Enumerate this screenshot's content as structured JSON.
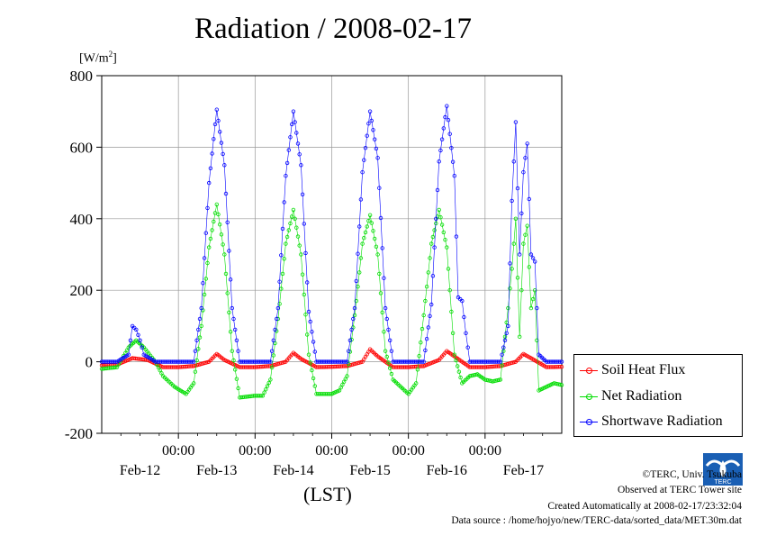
{
  "chart_data": {
    "type": "line",
    "title": "Radiation / 2008-02-17",
    "ylabel_unit": "[W/m",
    "ylabel_unit_sup": "2",
    "ylabel_unit_close": "]",
    "xlabel": "(LST)",
    "ylim": [
      -200,
      800
    ],
    "yticks": [
      "800",
      "600",
      "400",
      "200",
      "0",
      "-200"
    ],
    "ytick_values": [
      800,
      600,
      400,
      200,
      0,
      -200
    ],
    "xticks_time": [
      "00:00",
      "00:00",
      "00:00",
      "00:00",
      "00:00"
    ],
    "xticks_date": [
      "Feb-12",
      "Feb-13",
      "Feb-14",
      "Feb-15",
      "Feb-16",
      "Feb-17"
    ],
    "x_range_days": [
      "2008-02-12 00:00",
      "2008-02-18 00:00"
    ],
    "grid": true,
    "legend_position": "bottom-right",
    "series": [
      {
        "name": "Soil Heat Flux",
        "color": "#ff0000",
        "x_days": [
          0.0,
          0.2,
          0.4,
          0.6,
          0.8,
          1.0,
          1.2,
          1.4,
          1.5,
          1.6,
          1.8,
          2.0,
          2.2,
          2.4,
          2.5,
          2.6,
          2.8,
          3.0,
          3.2,
          3.4,
          3.5,
          3.6,
          3.8,
          4.0,
          4.2,
          4.4,
          4.5,
          4.6,
          4.8,
          5.0,
          5.2,
          5.4,
          5.5,
          5.6,
          5.8,
          6.0
        ],
        "values": [
          -10,
          -8,
          10,
          5,
          -15,
          -15,
          -12,
          0,
          22,
          5,
          -15,
          -15,
          -12,
          0,
          25,
          8,
          -15,
          -14,
          -12,
          0,
          35,
          15,
          -15,
          -15,
          -12,
          5,
          30,
          15,
          -15,
          -15,
          -12,
          0,
          22,
          10,
          -15,
          -14
        ]
      },
      {
        "name": "Net Radiation",
        "color": "#00dd00",
        "x_days": [
          0.0,
          0.2,
          0.35,
          0.45,
          0.55,
          0.7,
          0.8,
          0.95,
          1.1,
          1.2,
          1.3,
          1.4,
          1.5,
          1.6,
          1.7,
          1.8,
          2.0,
          2.1,
          2.2,
          2.3,
          2.4,
          2.5,
          2.6,
          2.7,
          2.8,
          3.0,
          3.1,
          3.2,
          3.3,
          3.4,
          3.5,
          3.6,
          3.7,
          3.8,
          3.9,
          4.0,
          4.1,
          4.2,
          4.3,
          4.4,
          4.5,
          4.6,
          4.7,
          4.8,
          4.9,
          5.0,
          5.1,
          5.2,
          5.3,
          5.35,
          5.4,
          5.45,
          5.5,
          5.55,
          5.6,
          5.65,
          5.7,
          5.8,
          5.9,
          6.0
        ],
        "values": [
          -20,
          -15,
          40,
          60,
          40,
          0,
          -40,
          -70,
          -90,
          -60,
          100,
          320,
          440,
          300,
          30,
          -100,
          -95,
          -95,
          -50,
          120,
          330,
          425,
          300,
          20,
          -90,
          -90,
          -80,
          -40,
          130,
          330,
          410,
          300,
          30,
          -50,
          -70,
          -90,
          -60,
          130,
          330,
          425,
          320,
          20,
          -60,
          -40,
          -35,
          -50,
          -55,
          -50,
          150,
          260,
          400,
          70,
          330,
          380,
          150,
          200,
          -80,
          -70,
          -60,
          -65
        ]
      },
      {
        "name": "Shortwave Radiation",
        "color": "#0000ff",
        "x_days": [
          0.0,
          0.2,
          0.35,
          0.4,
          0.45,
          0.5,
          0.55,
          0.7,
          0.9,
          1.1,
          1.2,
          1.3,
          1.4,
          1.5,
          1.6,
          1.7,
          1.8,
          2.0,
          2.2,
          2.3,
          2.4,
          2.5,
          2.6,
          2.7,
          2.8,
          3.0,
          3.2,
          3.3,
          3.4,
          3.5,
          3.6,
          3.7,
          3.8,
          4.0,
          4.2,
          4.3,
          4.4,
          4.5,
          4.6,
          4.65,
          4.7,
          4.75,
          4.8,
          5.0,
          5.2,
          5.3,
          5.35,
          5.4,
          5.45,
          5.5,
          5.55,
          5.6,
          5.65,
          5.7,
          5.8,
          6.0
        ],
        "values": [
          0,
          0,
          20,
          100,
          90,
          60,
          20,
          0,
          0,
          0,
          0,
          150,
          500,
          705,
          550,
          150,
          0,
          0,
          0,
          150,
          520,
          700,
          550,
          140,
          0,
          0,
          0,
          150,
          530,
          700,
          570,
          150,
          0,
          0,
          0,
          160,
          560,
          715,
          520,
          180,
          170,
          80,
          0,
          0,
          0,
          100,
          450,
          670,
          300,
          530,
          610,
          300,
          280,
          20,
          0,
          0
        ]
      }
    ]
  },
  "footer": {
    "copyright": "©TERC, Univ. Tsukuba",
    "observed": "Observed at TERC Tower site",
    "created": "Created Automatically at 2008-02-17/23:32:04",
    "source": "Data source : /home/hojyo/new/TERC-data/sorted_data/MET.30m.dat"
  },
  "logo_text": "TERC"
}
